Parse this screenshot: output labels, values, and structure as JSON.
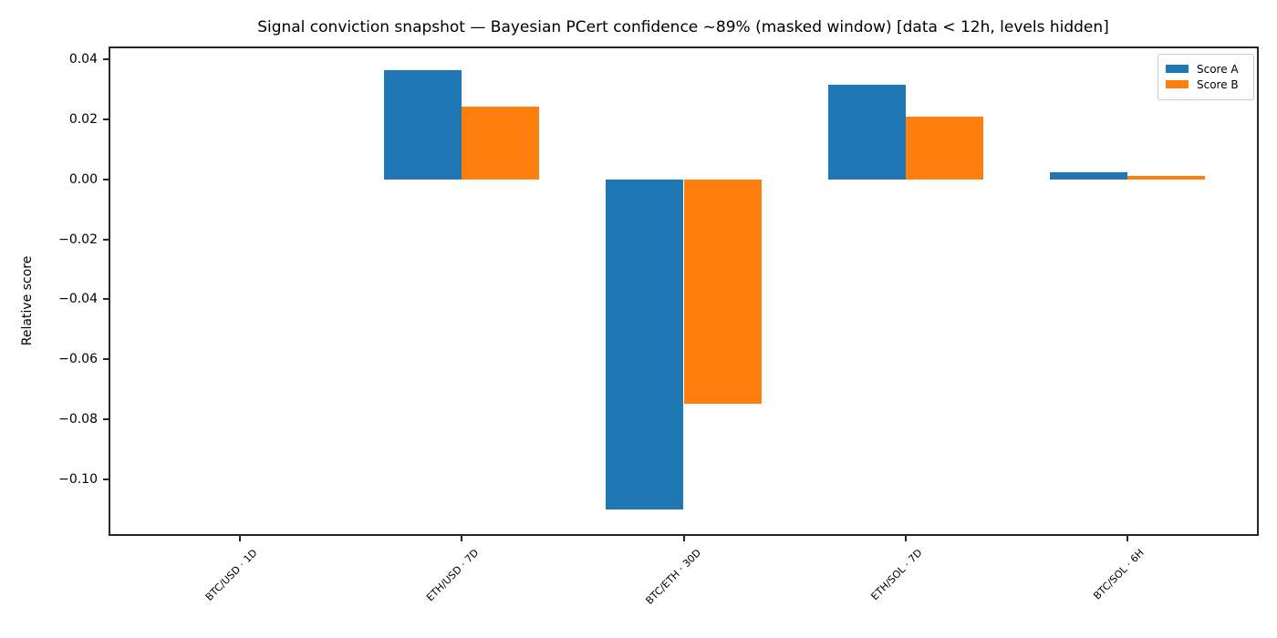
{
  "figure": {
    "title": "Signal conviction snapshot — Bayesian PCert confidence ~89% (masked window) [data < 12h, levels hidden]",
    "ylabel": "Relative score",
    "background_color": "#ffffff",
    "spine_color": "#262626"
  },
  "chart_data": {
    "type": "bar",
    "title": "Signal conviction snapshot — Bayesian PCert confidence ~89% (masked window) [data < 12h, levels hidden]",
    "xlabel": "",
    "ylabel": "Relative score",
    "categories": [
      "BTC/USD · 1D",
      "ETH/USD · 7D",
      "BTC/ETH · 30D",
      "ETH/SOL · 7D",
      "BTC/SOL · 6H"
    ],
    "series": [
      {
        "name": "Score A",
        "color": "#1f77b4",
        "values": [
          0.0,
          0.0364,
          -0.1102,
          0.0314,
          0.0023
        ]
      },
      {
        "name": "Score B",
        "color": "#ff7f0e",
        "values": [
          0.0,
          0.0243,
          -0.0748,
          0.0209,
          0.0012
        ]
      }
    ],
    "yticks": [
      0.04,
      0.02,
      0.0,
      -0.02,
      -0.04,
      -0.06,
      -0.08,
      -0.1
    ],
    "ylim": [
      -0.1183,
      0.0443
    ],
    "xlim": [
      -0.585,
      4.585
    ],
    "bar_width": 0.35,
    "grid": false,
    "legend_position": "upper right",
    "xtick_rotation_deg": 45
  },
  "legend": {
    "items": [
      {
        "label": "Score A",
        "color": "#1f77b4"
      },
      {
        "label": "Score B",
        "color": "#ff7f0e"
      }
    ]
  }
}
